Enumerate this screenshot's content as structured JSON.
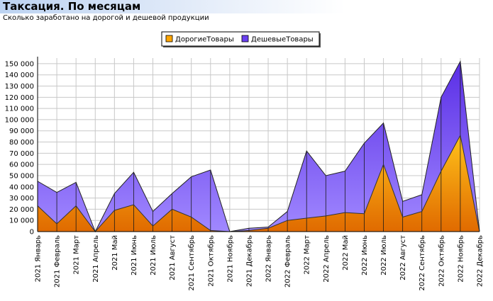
{
  "header": {
    "title": "Таксация. По месяцам",
    "subtitle": "Сколько заработано на дорогой и дешевой продукции"
  },
  "chart_data": {
    "type": "area",
    "stacked": true,
    "categories": [
      "2021 Январь",
      "2021 Февраль",
      "2021 Март",
      "2021 Апрель",
      "2021 Май",
      "2021 Июнь",
      "2021 Июль",
      "2021 Август",
      "2021 Сентябрь",
      "2021 Октябрь",
      "2021 Ноябрь",
      "2021 Декабрь",
      "2022 Январь",
      "2022 Февраль",
      "2022 Март",
      "2022 Апрель",
      "2022 Май",
      "2022 Июнь",
      "2022 Июль",
      "2022 Август",
      "2022 Сентябрь",
      "2022 Октябрь",
      "2022 Ноябрь",
      "2022 Декабрь"
    ],
    "series": [
      {
        "name": "ДорогиеТовары",
        "color": "#ffa500",
        "values": [
          23000,
          7000,
          23000,
          0,
          19000,
          24000,
          5000,
          20000,
          13000,
          1000,
          0,
          1000,
          3000,
          10000,
          12000,
          14000,
          17000,
          16000,
          60000,
          13000,
          18000,
          54000,
          86000,
          0
        ]
      },
      {
        "name": "ДешевыеТовары",
        "color": "#7b52f0",
        "values": [
          22000,
          28000,
          21000,
          0,
          15000,
          29000,
          13000,
          14000,
          36000,
          54000,
          0,
          2000,
          1000,
          8000,
          60000,
          36000,
          37000,
          63000,
          37000,
          14000,
          15000,
          66000,
          66000,
          0
        ]
      }
    ],
    "yticks": [
      0,
      10000,
      20000,
      30000,
      40000,
      50000,
      60000,
      70000,
      80000,
      90000,
      100000,
      110000,
      120000,
      130000,
      140000,
      150000
    ],
    "ytick_labels": [
      "0",
      "10 000",
      "20 000",
      "30 000",
      "40 000",
      "50 000",
      "60 000",
      "70 000",
      "80 000",
      "90 000",
      "100 000",
      "110 000",
      "120 000",
      "130 000",
      "140 000",
      "150 000"
    ],
    "ylim": [
      0,
      155000
    ],
    "grid": true,
    "legend_position": "top-center"
  }
}
